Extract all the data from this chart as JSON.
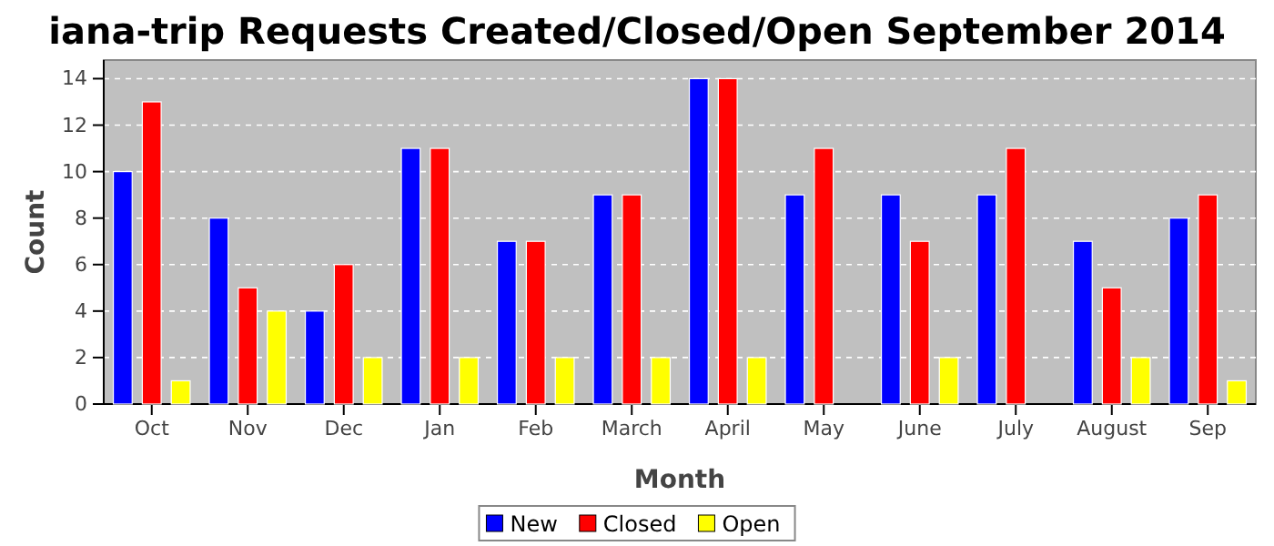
{
  "chart_data": {
    "type": "bar",
    "title": "iana-trip Requests Created/Closed/Open September 2014",
    "xlabel": "Month",
    "ylabel": "Count",
    "categories": [
      "Oct",
      "Nov",
      "Dec",
      "Jan",
      "Feb",
      "March",
      "April",
      "May",
      "June",
      "July",
      "August",
      "Sep"
    ],
    "series": [
      {
        "name": "New",
        "color": "#0000ff",
        "values": [
          10,
          8,
          4,
          11,
          7,
          9,
          14,
          9,
          9,
          9,
          7,
          8
        ]
      },
      {
        "name": "Closed",
        "color": "#ff0000",
        "values": [
          13,
          5,
          6,
          11,
          7,
          9,
          14,
          11,
          7,
          11,
          5,
          9
        ]
      },
      {
        "name": "Open",
        "color": "#ffff00",
        "values": [
          1,
          4,
          2,
          2,
          2,
          2,
          2,
          0,
          2,
          0,
          2,
          1
        ]
      }
    ],
    "ylim": [
      0,
      14.8
    ],
    "yticks": [
      0,
      2,
      4,
      6,
      8,
      10,
      12,
      14
    ],
    "grid": "y",
    "legend": "bottom"
  }
}
